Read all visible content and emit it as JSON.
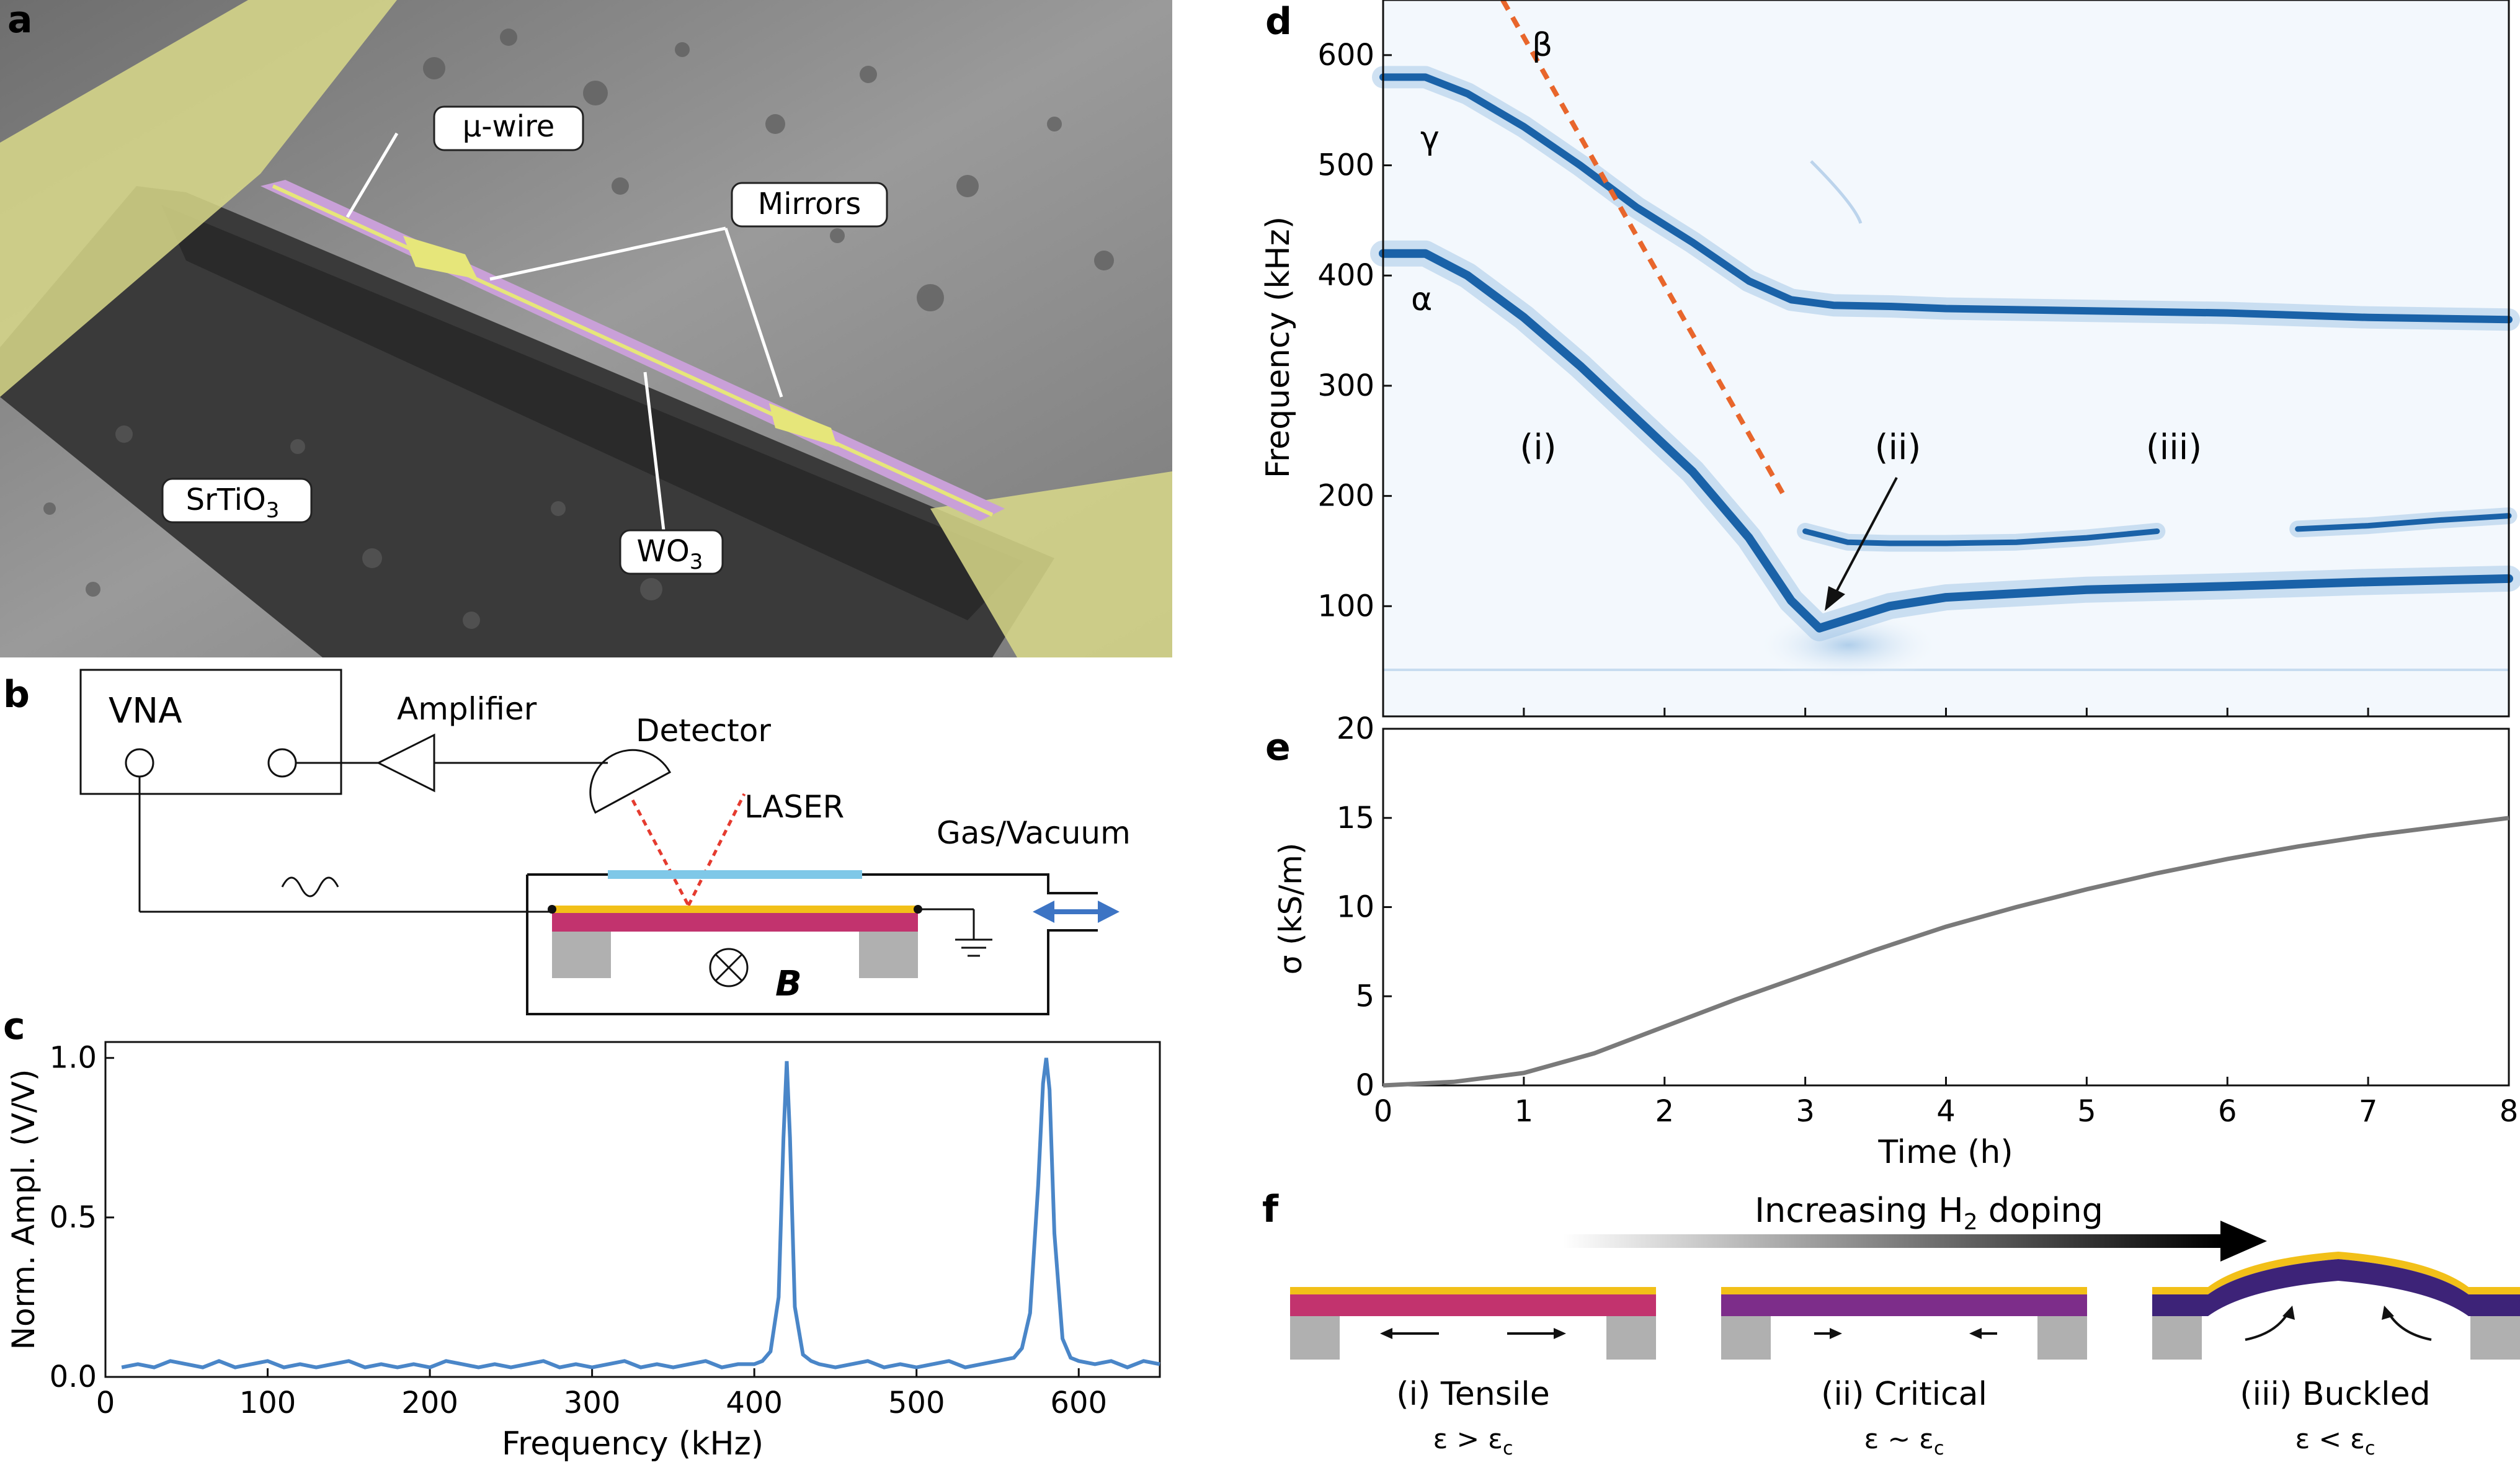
{
  "panel_labels": {
    "a": "a",
    "b": "b",
    "c": "c",
    "d": "d",
    "e": "e",
    "f": "f"
  },
  "panel_a": {
    "labels": {
      "wire": "μ-wire",
      "mirrors": "Mirrors",
      "substrate": "SrTiO",
      "substrate_sub": "3",
      "film": "WO",
      "film_sub": "3"
    },
    "colors": {
      "gold": "#e6e67a",
      "purple": "#c9a0d8",
      "sem": "#8a8a8a"
    }
  },
  "panel_b": {
    "vna": "VNA",
    "amplifier": "Amplifier",
    "detector": "Detector",
    "laser": "LASER",
    "gas": "Gas/Vacuum",
    "field": "B",
    "colors": {
      "beam_laser": "#e53b2f",
      "window": "#7fc8e8",
      "gold": "#f2c018",
      "magenta": "#c2336e",
      "gray": "#b0b0b0",
      "arrow": "#3d74c4"
    }
  },
  "panel_c": {
    "chart_data": {
      "type": "line",
      "xlabel": "Frequency (kHz)",
      "ylabel": "Norm. Ampl. (V/V)",
      "xlim": [
        0,
        650
      ],
      "ylim": [
        0,
        1.05
      ],
      "x_ticks": [
        "0",
        "100",
        "200",
        "300",
        "400",
        "500",
        "600"
      ],
      "y_ticks": [
        "0.0",
        "0.5",
        "1.0"
      ],
      "series": [
        {
          "color": "#4a86c8",
          "x": [
            10,
            20,
            30,
            40,
            50,
            60,
            70,
            80,
            90,
            100,
            110,
            120,
            130,
            140,
            150,
            160,
            170,
            180,
            190,
            200,
            210,
            220,
            230,
            240,
            250,
            260,
            270,
            280,
            290,
            300,
            310,
            320,
            330,
            340,
            350,
            360,
            370,
            380,
            390,
            400,
            405,
            410,
            415,
            418,
            420,
            422,
            425,
            430,
            435,
            440,
            450,
            460,
            470,
            480,
            490,
            500,
            510,
            520,
            530,
            540,
            550,
            560,
            565,
            570,
            575,
            578,
            580,
            582,
            585,
            590,
            595,
            600,
            610,
            620,
            630,
            640,
            650
          ],
          "y": [
            0.03,
            0.04,
            0.03,
            0.05,
            0.04,
            0.03,
            0.05,
            0.03,
            0.04,
            0.05,
            0.03,
            0.04,
            0.03,
            0.04,
            0.05,
            0.03,
            0.04,
            0.03,
            0.04,
            0.03,
            0.05,
            0.04,
            0.03,
            0.04,
            0.03,
            0.04,
            0.05,
            0.03,
            0.04,
            0.03,
            0.04,
            0.05,
            0.03,
            0.04,
            0.03,
            0.04,
            0.05,
            0.03,
            0.04,
            0.04,
            0.05,
            0.08,
            0.25,
            0.75,
            0.99,
            0.75,
            0.22,
            0.07,
            0.05,
            0.04,
            0.03,
            0.04,
            0.05,
            0.03,
            0.04,
            0.03,
            0.04,
            0.05,
            0.03,
            0.04,
            0.05,
            0.06,
            0.09,
            0.2,
            0.6,
            0.92,
            1.0,
            0.9,
            0.45,
            0.12,
            0.06,
            0.05,
            0.04,
            0.05,
            0.03,
            0.05,
            0.04
          ]
        }
      ]
    }
  },
  "panel_d": {
    "chart_data": {
      "type": "heatmap",
      "xlim": [
        0,
        8
      ],
      "ylim": [
        0,
        650
      ],
      "ylabel": "Frequency (kHz)",
      "y_ticks": [
        "100",
        "200",
        "300",
        "400",
        "500",
        "600"
      ],
      "branches": [
        {
          "name": "γ",
          "x": [
            0,
            0.3,
            0.6,
            1,
            1.4,
            1.8,
            2.2,
            2.6,
            2.9,
            3.2,
            3.6,
            4,
            5,
            6,
            7,
            8
          ],
          "y": [
            580,
            580,
            565,
            535,
            500,
            462,
            430,
            395,
            378,
            373,
            372,
            370,
            368,
            366,
            362,
            360
          ]
        },
        {
          "name": "α",
          "x": [
            0,
            0.3,
            0.6,
            1,
            1.4,
            1.8,
            2.2,
            2.6,
            2.9,
            3.1,
            3.3,
            3.6,
            4,
            5,
            6,
            7,
            8
          ],
          "y": [
            420,
            420,
            400,
            362,
            318,
            270,
            222,
            162,
            105,
            80,
            88,
            100,
            108,
            115,
            118,
            122,
            125
          ]
        },
        {
          "name": "",
          "x": [
            3.0,
            3.3,
            3.6,
            4,
            4.5,
            5,
            5.5
          ],
          "y": [
            168,
            158,
            157,
            157,
            158,
            162,
            168
          ]
        },
        {
          "name": "",
          "x": [
            6.5,
            7,
            7.5,
            8
          ],
          "y": [
            170,
            173,
            178,
            182
          ]
        }
      ],
      "beta_line": {
        "name": "β",
        "x": [
          0.85,
          2.85
        ],
        "y": [
          650,
          200
        ]
      },
      "region_labels": [
        "(i)",
        "(ii)",
        "(iii)"
      ],
      "colors": {
        "trace": "#1a62a8",
        "beta": "#e8662c",
        "noise": "#d6e6f5"
      }
    }
  },
  "panel_e": {
    "chart_data": {
      "type": "line",
      "xlabel": "Time (h)",
      "ylabel": "σ (kS/m)",
      "xlim": [
        0,
        8
      ],
      "ylim": [
        0,
        20
      ],
      "x_ticks": [
        "0",
        "1",
        "2",
        "3",
        "4",
        "5",
        "6",
        "7",
        "8"
      ],
      "y_ticks": [
        "0",
        "5",
        "10",
        "15",
        "20"
      ],
      "series": [
        {
          "color": "#7a7a7a",
          "x": [
            0,
            0.5,
            1,
            1.5,
            2,
            2.5,
            3,
            3.5,
            4,
            4.5,
            5,
            5.5,
            6,
            6.5,
            7,
            7.5,
            8
          ],
          "y": [
            0,
            0.2,
            0.7,
            1.8,
            3.3,
            4.8,
            6.2,
            7.6,
            8.9,
            10.0,
            11.0,
            11.9,
            12.7,
            13.4,
            14.0,
            14.5,
            15.0
          ]
        }
      ]
    }
  },
  "panel_f": {
    "arrow_label": "Increasing H",
    "arrow_label_sub": "2",
    "arrow_label_tail": " doping",
    "states": [
      {
        "label": "(i) Tensile",
        "cond": "ε > ε",
        "cond_sub": "c",
        "color": "#c2336e"
      },
      {
        "label": "(ii) Critical",
        "cond": "ε ~ ε",
        "cond_sub": "c",
        "color": "#7d2d8a"
      },
      {
        "label": "(iii) Buckled",
        "cond": "ε < ε",
        "cond_sub": "c",
        "color": "#3d2378"
      }
    ],
    "colors": {
      "gold": "#f2c018",
      "gray": "#b0b0b0"
    }
  }
}
